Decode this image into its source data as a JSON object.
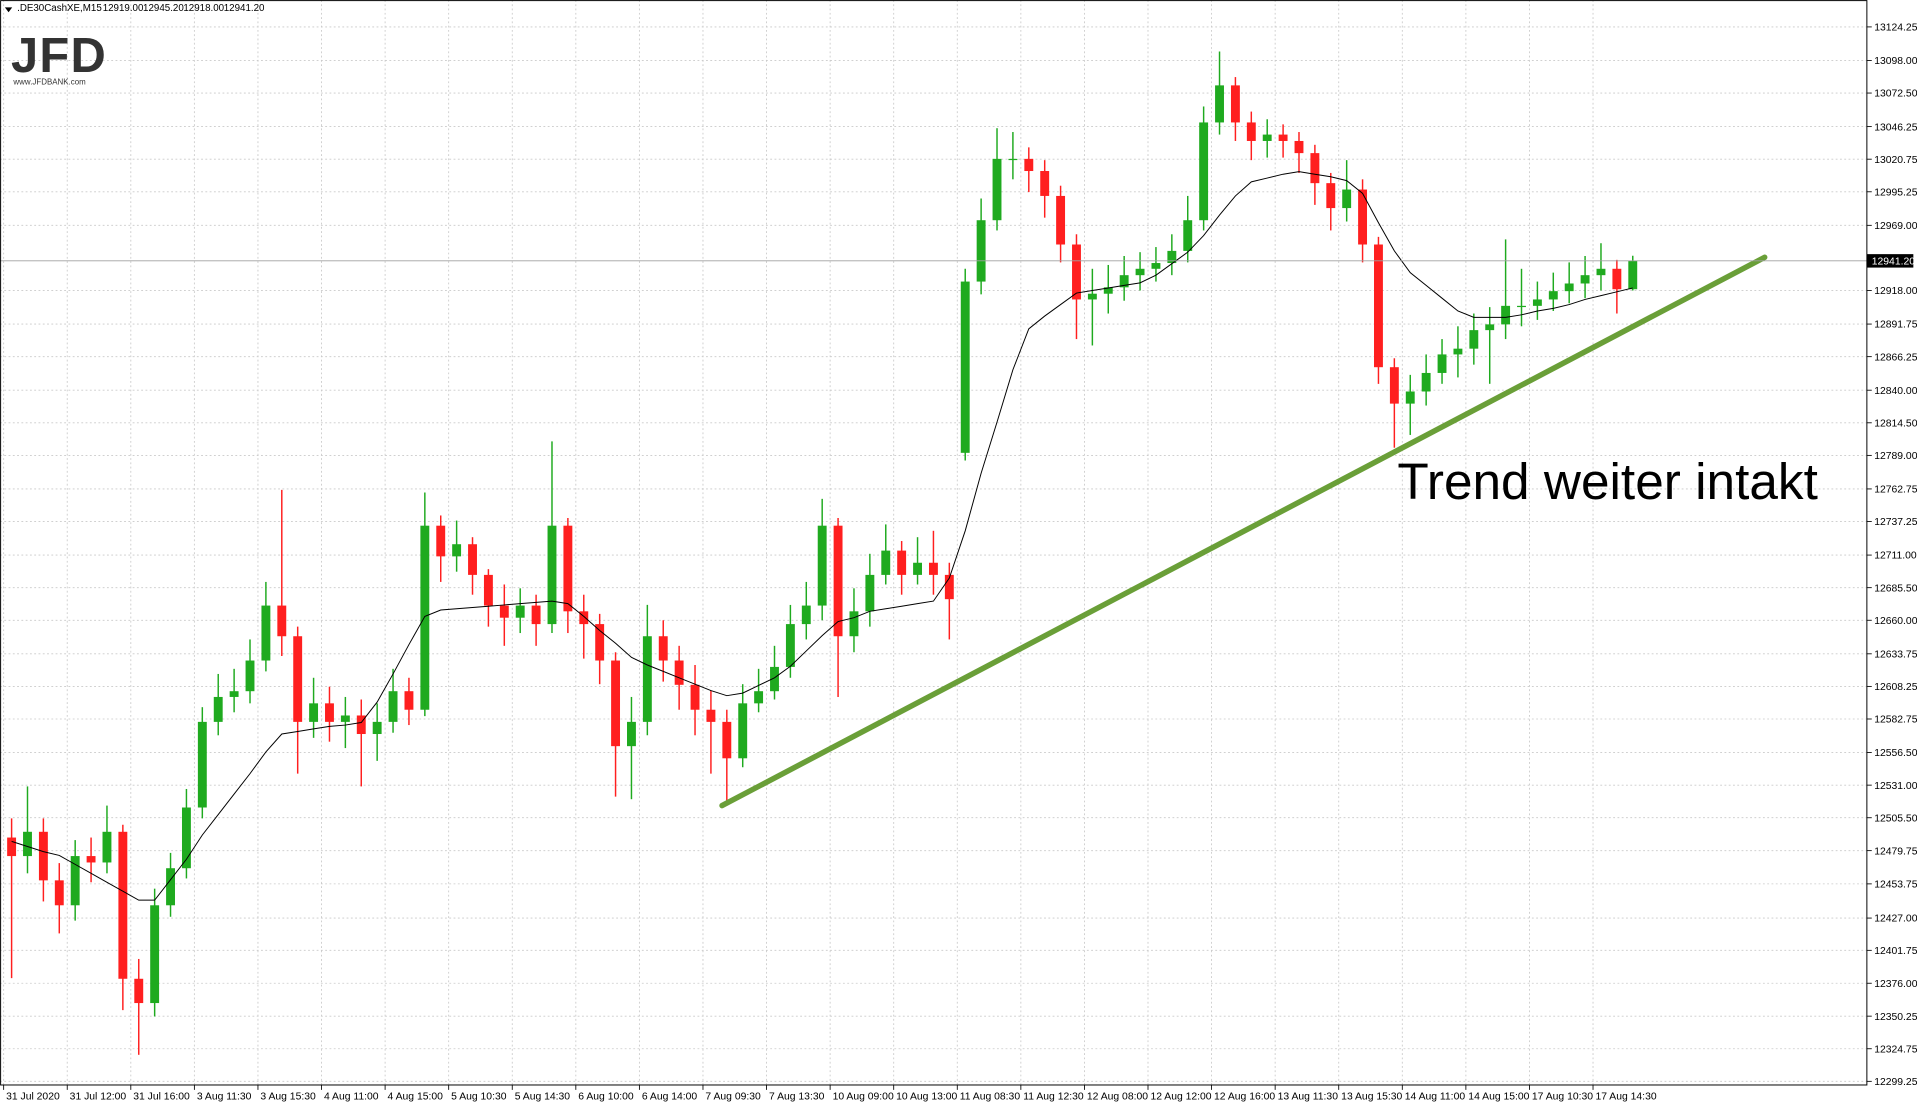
{
  "header": {
    "symbol": ".DE30CashXE,M15",
    "prices": [
      "12919.00",
      "12945.20",
      "12918.00",
      "12941.20"
    ]
  },
  "logo": {
    "brand": "JFD",
    "url": "www.JFDBANK.com"
  },
  "chart_data": {
    "type": "candlestick",
    "annotation": "Trend weiter intakt",
    "bull_color": "#1faa1f",
    "bear_color": "#ff1f1f",
    "grid": true,
    "categories": [
      "31 Jul 2020",
      null,
      null,
      null,
      "31 Jul 12:00",
      null,
      null,
      null,
      "31 Jul 16:00",
      null,
      null,
      null,
      "3 Aug 11:30",
      null,
      null,
      null,
      "3 Aug 15:30",
      null,
      null,
      null,
      "4 Aug 11:00",
      null,
      null,
      null,
      "4 Aug 15:00",
      null,
      null,
      null,
      "5 Aug 10:30",
      null,
      null,
      null,
      "5 Aug 14:30",
      null,
      null,
      null,
      "6 Aug 10:00",
      null,
      null,
      null,
      "6 Aug 14:00",
      null,
      null,
      null,
      "7 Aug 09:30",
      null,
      null,
      null,
      "7 Aug 13:30",
      null,
      null,
      null,
      "10 Aug 09:00",
      null,
      null,
      null,
      "10 Aug 13:00",
      null,
      null,
      null,
      "11 Aug 08:30",
      null,
      null,
      null,
      "11 Aug 12:30",
      null,
      null,
      null,
      "12 Aug 08:00",
      null,
      null,
      null,
      "12 Aug 12:00",
      null,
      null,
      null,
      "12 Aug 16:00",
      null,
      null,
      null,
      "13 Aug 11:30",
      null,
      null,
      null,
      "13 Aug 15:30",
      null,
      null,
      null,
      "14 Aug 11:00",
      null,
      null,
      null,
      "14 Aug 15:00",
      null,
      null,
      null,
      "17 Aug 10:30",
      null,
      null,
      null,
      "17 Aug 14:30",
      null,
      null
    ],
    "open": [
      12490,
      12475.5,
      12494.5,
      12456.5,
      12437,
      12475.5,
      12470.5,
      12494.5,
      12379.5,
      12360.5,
      12437,
      12466,
      12513.5,
      12580.5,
      12600,
      12604.5,
      12628.5,
      12671.5,
      12647.5,
      12580.5,
      12595,
      12580.5,
      12585.5,
      12571,
      12580.5,
      12604.5,
      12590,
      12734,
      12710,
      12719.5,
      12695.5,
      12671.5,
      12662,
      12671.5,
      12657,
      12734,
      12667,
      12657,
      12628.5,
      12561.5,
      12580.5,
      12647.5,
      12628.5,
      12609.5,
      12590,
      12580.5,
      12552,
      12595,
      12604.5,
      12623.5,
      12657,
      12671.5,
      12734,
      12647.5,
      12667,
      12695.5,
      12714.5,
      12695.5,
      12705,
      12695.5,
      12791,
      12925,
      12973,
      13021,
      13021,
      13011.5,
      12992,
      12954,
      12911,
      12915.5,
      12920.5,
      12930,
      12935,
      12939.5,
      12949,
      12973,
      13049.5,
      13078.5,
      13049.5,
      13035,
      13040,
      13035,
      13025.5,
      13002,
      12982.5,
      12997,
      12954,
      12858,
      12829.5,
      12839,
      12853.5,
      12868,
      12872.5,
      12887,
      12891.5,
      12906,
      12906,
      12911,
      12917.5,
      12923.5,
      12930,
      12935,
      12919
    ],
    "high": [
      12505,
      12530,
      12505,
      12470,
      12488,
      12490,
      12515,
      12500,
      12395,
      12450,
      12478,
      12528,
      12592,
      12618,
      12622,
      12645,
      12690,
      12762,
      12655,
      12615,
      12608,
      12600,
      12598,
      12595,
      12622,
      12615,
      12760,
      12742,
      12738,
      12725,
      12700,
      12688,
      12685,
      12680,
      12800,
      12740,
      12680,
      12665,
      12635,
      12600,
      12672,
      12660,
      12640,
      12625,
      12605,
      12590,
      12610,
      12622,
      12640,
      12672,
      12690,
      12755,
      12740,
      12685,
      12712,
      12735,
      12722,
      12725,
      12730,
      12705,
      12935,
      12990,
      13045,
      13042,
      13030,
      13020,
      13000,
      12962,
      12935,
      12938,
      12945,
      12948,
      12952,
      12962,
      12992,
      13062,
      13105,
      13085,
      13058,
      13052,
      13048,
      13042,
      13032,
      13010,
      13020,
      13005,
      12960,
      12865,
      12852,
      12868,
      12880,
      12890,
      12900,
      12905,
      12958,
      12935,
      12925,
      12932,
      12940,
      12945,
      12955,
      12942,
      12945.2
    ],
    "low": [
      12380,
      12462,
      12440,
      12415,
      12425,
      12455,
      12462,
      12355,
      12320,
      12350,
      12428,
      12458,
      12505,
      12570,
      12588,
      12595,
      12620,
      12632,
      12540,
      12568,
      12565,
      12560,
      12530,
      12550,
      12572,
      12578,
      12585,
      12690,
      12698,
      12680,
      12655,
      12640,
      12650,
      12640,
      12650,
      12650,
      12630,
      12610,
      12522,
      12520,
      12570,
      12612,
      12590,
      12570,
      12540,
      12515,
      12545,
      12588,
      12598,
      12615,
      12645,
      12660,
      12600,
      12635,
      12655,
      12688,
      12680,
      12688,
      12680,
      12645,
      12785,
      12915,
      12965,
      13005,
      12995,
      12975,
      12940,
      12880,
      12875,
      12900,
      12910,
      12918,
      12925,
      12930,
      12940,
      12965,
      13040,
      13035,
      13020,
      13022,
      13022,
      13010,
      12985,
      12965,
      12972,
      12940,
      12845,
      12795,
      12805,
      12828,
      12845,
      12850,
      12860,
      12845,
      12880,
      12890,
      12895,
      12902,
      12908,
      12912,
      12918,
      12900,
      12918
    ],
    "close": [
      12475.5,
      12494.5,
      12456.5,
      12437,
      12475.5,
      12470.5,
      12494.5,
      12379.5,
      12360.5,
      12437,
      12466,
      12513.5,
      12580.5,
      12600,
      12604.5,
      12628.5,
      12671.5,
      12647.5,
      12580.5,
      12595,
      12580.5,
      12585.5,
      12571,
      12580.5,
      12604.5,
      12590,
      12734,
      12710,
      12719.5,
      12695.5,
      12671.5,
      12662,
      12671.5,
      12657,
      12734,
      12667,
      12657,
      12628.5,
      12561.5,
      12580.5,
      12647.5,
      12628.5,
      12609.5,
      12590,
      12580.5,
      12552,
      12595,
      12604.5,
      12623.5,
      12657,
      12671.5,
      12734,
      12647.5,
      12667,
      12695.5,
      12714.5,
      12695.5,
      12705,
      12695.5,
      12676.5,
      12925,
      12973,
      13021,
      13021,
      13011.5,
      12992,
      12954,
      12911,
      12915.5,
      12920.5,
      12930,
      12935,
      12939.5,
      12949,
      12973,
      13049.5,
      13078.5,
      13049.5,
      13035,
      13040,
      13035,
      13025.5,
      13002,
      12982.5,
      12997,
      12954,
      12858,
      12829.5,
      12839,
      12853.5,
      12868,
      12872.5,
      12887,
      12891.5,
      12906,
      12906,
      12911,
      12917.5,
      12923.5,
      12930,
      12935,
      12919,
      12941.2
    ],
    "ma": {
      "color": "#000000",
      "values": [
        12487,
        12483,
        12479,
        12476,
        12469,
        12462,
        12455,
        12448,
        12441,
        12441,
        12457,
        12473,
        12492,
        12508,
        12524,
        12540,
        12557,
        12571,
        12573,
        12575,
        12577,
        12578,
        12580,
        12596,
        12618,
        12641,
        12663,
        12668,
        12669,
        12670,
        12671,
        12672,
        12673,
        12674,
        12675,
        12673,
        12663,
        12652,
        12642,
        12631,
        12625,
        12620,
        12615,
        12610,
        12605,
        12601,
        12603,
        12609,
        12615,
        12624,
        12636,
        12648,
        12659,
        12662,
        12667,
        12669,
        12671,
        12673,
        12675,
        12693,
        12730,
        12775,
        12815,
        12856,
        12888,
        12898,
        12907,
        12916,
        12918,
        12920,
        12922,
        12924,
        12930,
        12939,
        12948,
        12961,
        12977,
        12992,
        13003,
        13006,
        13009,
        13011,
        13009,
        13007,
        13004,
        12994,
        12971,
        12949,
        12932,
        12922,
        12912,
        12902,
        12897,
        12897,
        12897,
        12899,
        12902,
        12904,
        12907,
        12911,
        12914,
        12917,
        12920
      ]
    },
    "trendline": {
      "color": "#6a9f38",
      "x": [
        44.7,
        110.3
      ],
      "y": [
        12515,
        12944
      ]
    },
    "last_price": {
      "value": 12941.2,
      "label": "12941.20"
    },
    "xlim": [
      -0.73,
      116.73
    ],
    "ylim": [
      12296.4,
      13145.3
    ],
    "yticks": [
      13124.25,
      {
        "value": 13098,
        "label": "13098.00"
      },
      {
        "value": 13072.5,
        "label": "13072.50"
      },
      13046.25,
      13020.75,
      12995.25,
      {
        "value": 12969,
        "label": "12969.00"
      },
      {
        "value": 12918,
        "label": "12918.00"
      },
      12891.75,
      12866.25,
      {
        "value": 12840,
        "label": "12840.00"
      },
      {
        "value": 12814.5,
        "label": "12814.50"
      },
      {
        "value": 12789,
        "label": "12789.00"
      },
      12762.75,
      12737.25,
      {
        "value": 12711,
        "label": "12711.00"
      },
      {
        "value": 12685.5,
        "label": "12685.50"
      },
      {
        "value": 12660,
        "label": "12660.00"
      },
      12633.75,
      12608.25,
      12582.75,
      {
        "value": 12556.5,
        "label": "12556.50"
      },
      {
        "value": 12531,
        "label": "12531.00"
      },
      {
        "value": 12505.5,
        "label": "12505.50"
      },
      12479.75,
      12453.75,
      {
        "value": 12427,
        "label": "12427.00"
      },
      12401.75,
      {
        "value": 12376,
        "label": "12376.00"
      },
      12350.25,
      12324.75,
      12299.25
    ]
  }
}
